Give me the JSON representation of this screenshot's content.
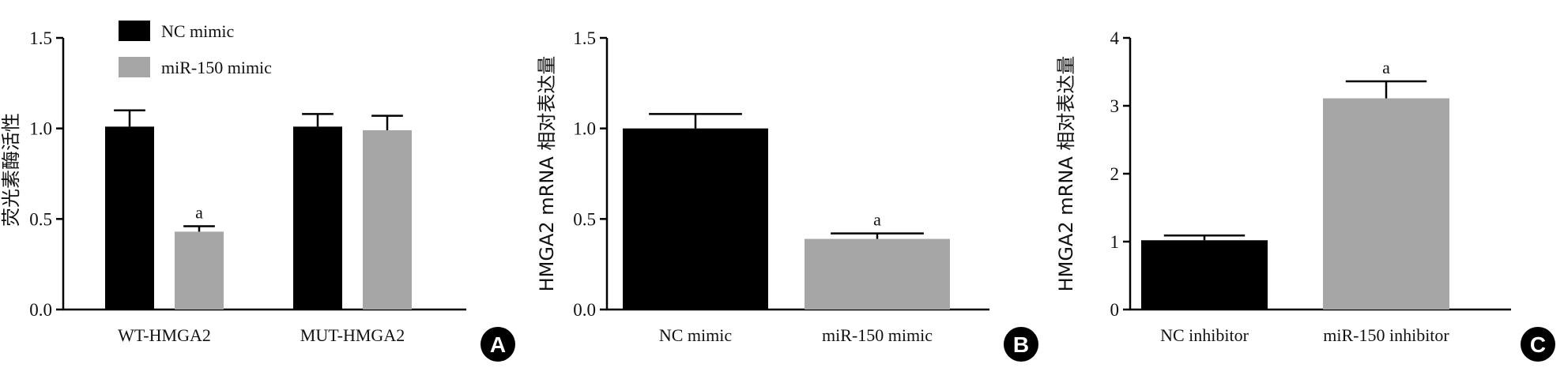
{
  "colors": {
    "series_nc": "#000000",
    "series_mir": "#a6a6a6",
    "axis": "#000000",
    "badge": "#000000",
    "badge_text": "#ffffff"
  },
  "chart_data": [
    {
      "panel": "A",
      "type": "bar",
      "title": "",
      "xlabel": "",
      "ylabel": "荧光素酶活性",
      "ylim": [
        0,
        1.5
      ],
      "yticks": [
        "0.0",
        "0.5",
        "1.0",
        "1.5"
      ],
      "categories": [
        "WT-HMGA2",
        "MUT-HMGA2"
      ],
      "legend": {
        "position": "top-left",
        "entries": [
          "NC mimic",
          "miR-150 mimic"
        ]
      },
      "series": [
        {
          "name": "NC mimic",
          "values": [
            1.01,
            1.01
          ],
          "errors": [
            0.09,
            0.07
          ],
          "annotations": [
            "",
            ""
          ]
        },
        {
          "name": "miR-150 mimic",
          "values": [
            0.43,
            0.99
          ],
          "errors": [
            0.03,
            0.08
          ],
          "annotations": [
            "a",
            ""
          ]
        }
      ]
    },
    {
      "panel": "B",
      "type": "bar",
      "title": "",
      "xlabel": "",
      "ylabel": "HMGA2 mRNA 相对表达量",
      "ylim": [
        0,
        1.5
      ],
      "yticks": [
        "0.0",
        "0.5",
        "1.0",
        "1.5"
      ],
      "categories": [
        "NC mimic",
        "miR-150 mimic"
      ],
      "values": [
        1.0,
        0.39
      ],
      "errors": [
        0.08,
        0.03
      ],
      "annotations": [
        "",
        "a"
      ]
    },
    {
      "panel": "C",
      "type": "bar",
      "title": "",
      "xlabel": "",
      "ylabel": "HMGA2 mRNA 相对表达量",
      "ylim": [
        0,
        4
      ],
      "yticks": [
        "0",
        "1",
        "2",
        "3",
        "4"
      ],
      "categories": [
        "NC inhibitor",
        "miR-150 inhibitor"
      ],
      "values": [
        1.02,
        3.11
      ],
      "errors": [
        0.07,
        0.25
      ],
      "annotations": [
        "",
        "a"
      ]
    }
  ]
}
